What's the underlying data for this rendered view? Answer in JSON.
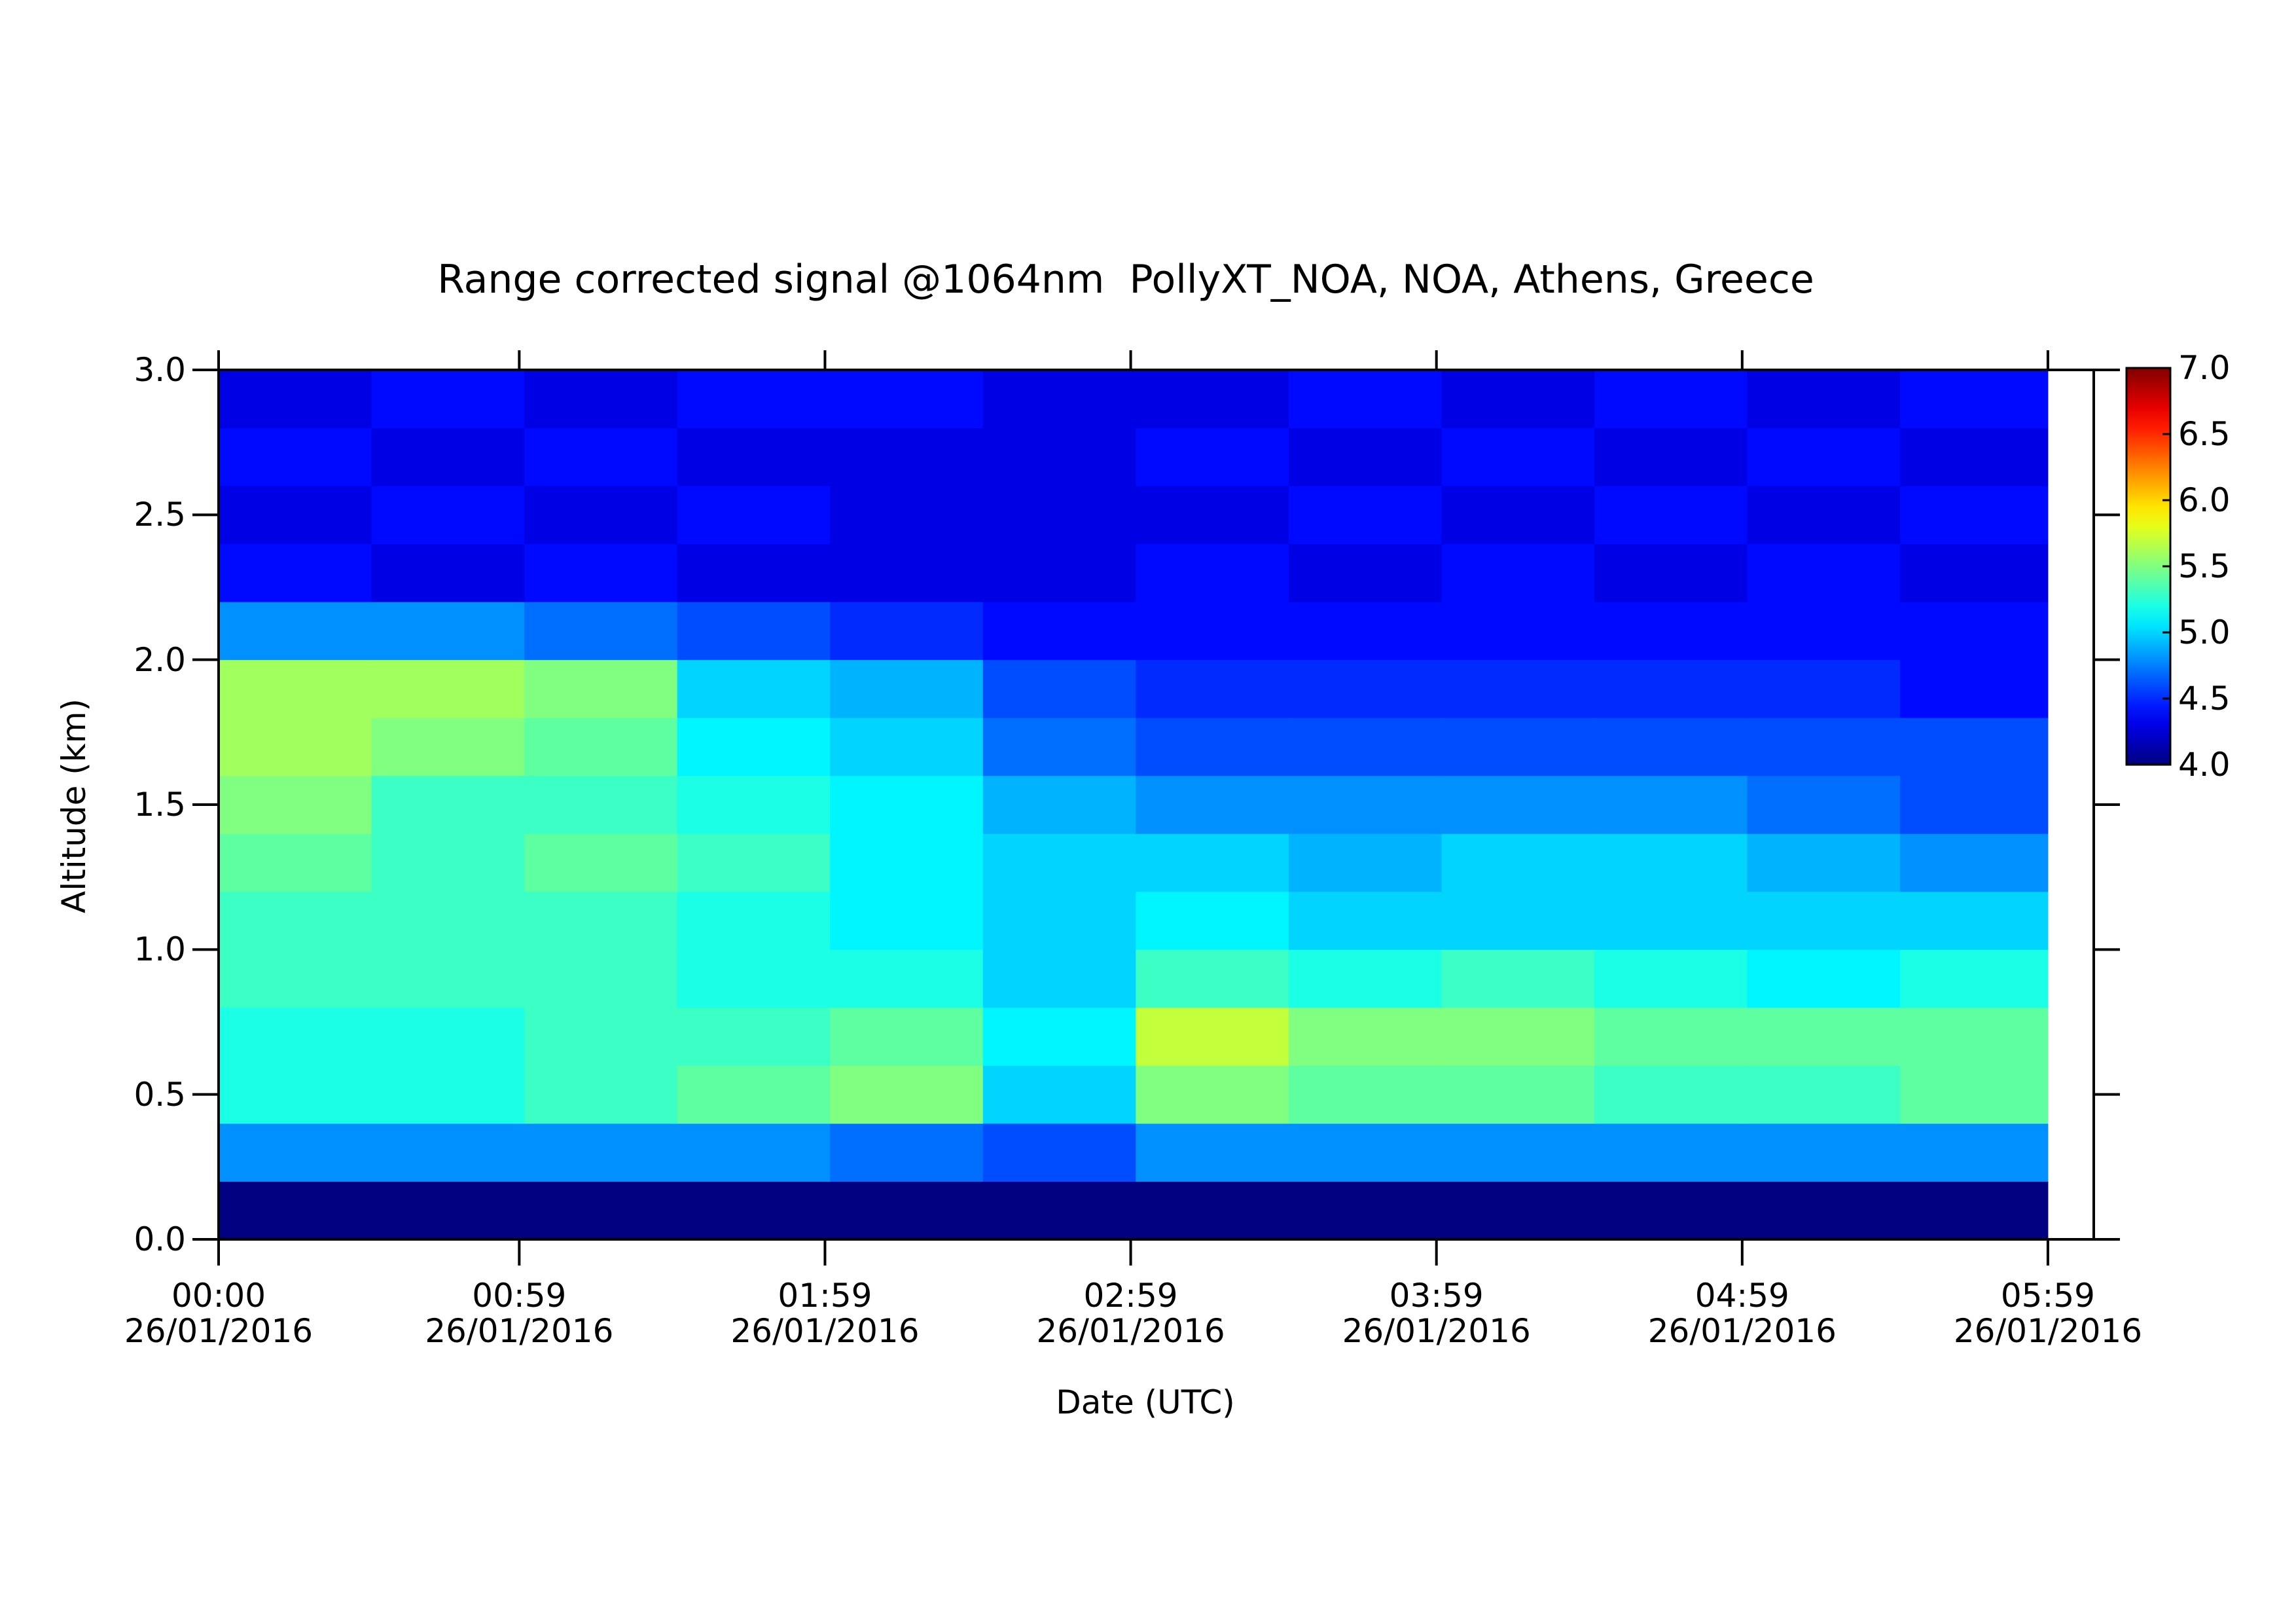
{
  "chart_data": {
    "type": "heatmap",
    "title": "Range corrected signal @1064nm  PollyXT_NOA, NOA, Athens, Greece",
    "x_label": "Date (UTC)",
    "y_label": "Altitude (km)",
    "xlim": [
      0,
      368
    ],
    "xticks": [
      {
        "value": 0,
        "label": "00:00\n26/01/2016"
      },
      {
        "value": 59,
        "label": "00:59\n26/01/2016"
      },
      {
        "value": 119,
        "label": "01:59\n26/01/2016"
      },
      {
        "value": 179,
        "label": "02:59\n26/01/2016"
      },
      {
        "value": 239,
        "label": "03:59\n26/01/2016"
      },
      {
        "value": 299,
        "label": "04:59\n26/01/2016"
      },
      {
        "value": 359,
        "label": "05:59\n26/01/2016"
      }
    ],
    "ylim": [
      0,
      3
    ],
    "yticks": [
      {
        "value": 0,
        "label": "0.0"
      },
      {
        "value": 0.5,
        "label": "0.5"
      },
      {
        "value": 1,
        "label": "1.0"
      },
      {
        "value": 1.5,
        "label": "1.5"
      },
      {
        "value": 2,
        "label": "2.0"
      },
      {
        "value": 2.5,
        "label": "2.5"
      },
      {
        "value": 3,
        "label": "3.0"
      }
    ],
    "clim": [
      4,
      7
    ],
    "cticks": [
      {
        "value": 4,
        "label": "4.0"
      },
      {
        "value": 4.5,
        "label": "4.5"
      },
      {
        "value": 5,
        "label": "5.0"
      },
      {
        "value": 5.5,
        "label": "5.5"
      },
      {
        "value": 6,
        "label": "6.0"
      },
      {
        "value": 6.5,
        "label": "6.5"
      },
      {
        "value": 7,
        "label": "7.0"
      }
    ],
    "colormap": "jet",
    "x_bins": [
      0,
      30,
      60,
      90,
      120,
      150,
      180,
      210,
      240,
      270,
      300,
      330,
      359
    ],
    "y_bins": [
      0,
      0.2,
      0.4,
      0.6,
      0.8,
      1.0,
      1.2,
      1.4,
      1.6,
      1.8,
      2.0,
      2.2,
      2.4,
      2.6,
      2.8,
      3.0
    ],
    "z": [
      [
        4.0,
        4.0,
        4.0,
        4.0,
        4.0,
        4.0,
        4.0,
        4.0,
        4.0,
        4.0,
        4.0,
        4.0
      ],
      [
        4.8,
        4.8,
        4.8,
        4.8,
        4.7,
        4.6,
        4.8,
        4.8,
        4.8,
        4.8,
        4.8,
        4.8
      ],
      [
        5.2,
        5.2,
        5.3,
        5.4,
        5.5,
        5.0,
        5.5,
        5.4,
        5.4,
        5.3,
        5.3,
        5.4
      ],
      [
        5.2,
        5.2,
        5.3,
        5.3,
        5.4,
        5.1,
        5.7,
        5.5,
        5.5,
        5.4,
        5.4,
        5.4
      ],
      [
        5.3,
        5.3,
        5.3,
        5.2,
        5.2,
        5.0,
        5.3,
        5.2,
        5.3,
        5.2,
        5.1,
        5.2
      ],
      [
        5.3,
        5.3,
        5.3,
        5.2,
        5.1,
        5.0,
        5.1,
        5.0,
        5.0,
        5.0,
        5.0,
        5.0
      ],
      [
        5.4,
        5.3,
        5.4,
        5.3,
        5.1,
        5.0,
        5.0,
        4.9,
        5.0,
        5.0,
        4.9,
        4.8
      ],
      [
        5.5,
        5.3,
        5.3,
        5.2,
        5.1,
        4.9,
        4.8,
        4.8,
        4.8,
        4.8,
        4.7,
        4.6
      ],
      [
        5.6,
        5.5,
        5.4,
        5.1,
        5.0,
        4.7,
        4.6,
        4.6,
        4.6,
        4.6,
        4.6,
        4.6
      ],
      [
        5.6,
        5.6,
        5.5,
        5.0,
        4.9,
        4.6,
        4.5,
        4.5,
        4.5,
        4.5,
        4.5,
        4.4
      ],
      [
        4.8,
        4.8,
        4.7,
        4.6,
        4.5,
        4.4,
        4.4,
        4.4,
        4.4,
        4.4,
        4.4,
        4.4
      ],
      [
        4.4,
        4.3,
        4.4,
        4.3,
        4.3,
        4.3,
        4.4,
        4.3,
        4.4,
        4.3,
        4.4,
        4.3
      ],
      [
        4.3,
        4.4,
        4.3,
        4.4,
        4.3,
        4.3,
        4.3,
        4.4,
        4.3,
        4.4,
        4.3,
        4.4
      ],
      [
        4.4,
        4.3,
        4.4,
        4.3,
        4.3,
        4.3,
        4.4,
        4.3,
        4.4,
        4.3,
        4.4,
        4.3
      ],
      [
        4.3,
        4.4,
        4.3,
        4.4,
        4.4,
        4.3,
        4.3,
        4.4,
        4.3,
        4.4,
        4.3,
        4.4
      ]
    ]
  }
}
